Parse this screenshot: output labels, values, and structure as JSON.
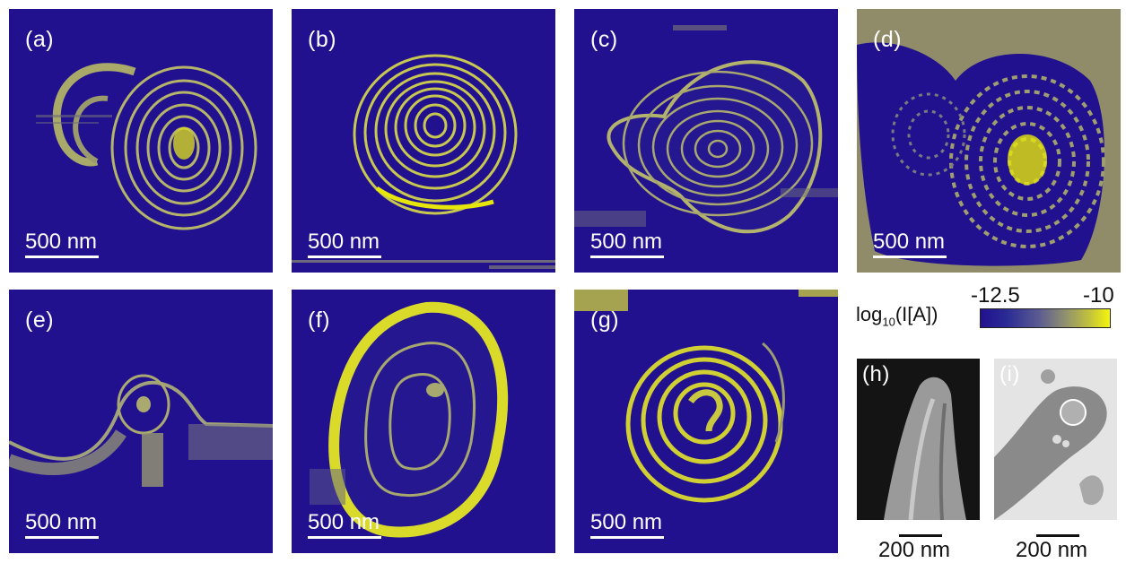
{
  "panels": [
    {
      "label": "(a)",
      "scale_text": "500 nm"
    },
    {
      "label": "(b)",
      "scale_text": "500 nm"
    },
    {
      "label": "(c)",
      "scale_text": "500 nm"
    },
    {
      "label": "(d)",
      "scale_text": "500 nm"
    },
    {
      "label": "(e)",
      "scale_text": "500 nm"
    },
    {
      "label": "(f)",
      "scale_text": "500 nm"
    },
    {
      "label": "(g)",
      "scale_text": "500 nm"
    },
    {
      "label": "(h)",
      "scale_text": "200 nm"
    },
    {
      "label": "(i)",
      "scale_text": "200 nm"
    }
  ],
  "colorbar": {
    "axis_label_main": "log",
    "axis_label_sub": "10",
    "axis_label_rest": "(I[A])",
    "min_label": "-12.5",
    "max_label": "-10",
    "colors": {
      "low": "#22118f",
      "high": "#f5f50d"
    }
  },
  "colors": {
    "background": "#22118f",
    "ring": "#b8b866",
    "bright": "#e6e60a"
  }
}
